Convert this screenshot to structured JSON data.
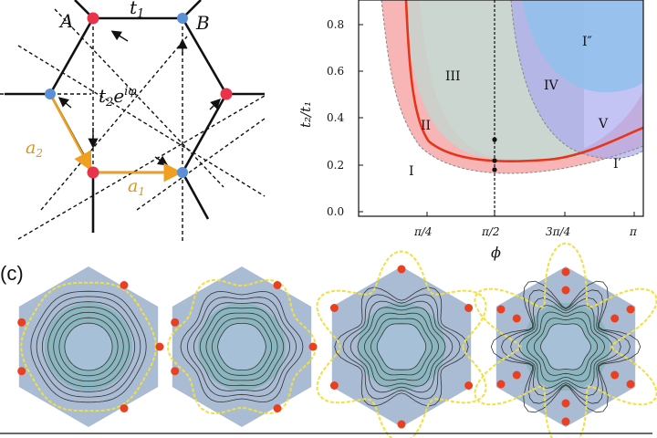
{
  "lattice": {
    "label_A": "A",
    "label_B": "B",
    "hop_t1": "t",
    "hop_t1_sub": "1",
    "hop_t2": "t",
    "hop_t2_sub": "2",
    "hop_t2_exp": "e",
    "hop_t2_exp_sup": "iφ",
    "vec_a1": "a",
    "vec_a1_sub": "1",
    "vec_a2": "a",
    "vec_a2_sub": "2",
    "colors": {
      "siteA": "#e8334a",
      "siteB": "#5b8fd6",
      "vectors": "#f0a020",
      "bonds": "#111111"
    }
  },
  "phase_diagram": {
    "y_axis_label": "t₂/t₁",
    "x_axis_label": "ϕ",
    "y_ticks": [
      "0.0",
      "0.2",
      "0.4",
      "0.6",
      "0.8"
    ],
    "x_ticks": [
      "π/4",
      "π/2",
      "3π/4",
      "π"
    ],
    "region_labels": [
      "I",
      "II",
      "III",
      "IV",
      "V",
      "I′",
      "I″"
    ],
    "colors": {
      "pink": "#f6a8a8",
      "gray": "#c8d4d0",
      "blue": "#8fbfe8",
      "purple": "#b8b8f0",
      "boundary": "#e83418"
    }
  },
  "panel_c": {
    "label": "(c)",
    "colors": {
      "hex_fill": "#aabbd4",
      "contour": "#333333",
      "fermi": "#f0e040",
      "dot": "#e84020"
    }
  }
}
